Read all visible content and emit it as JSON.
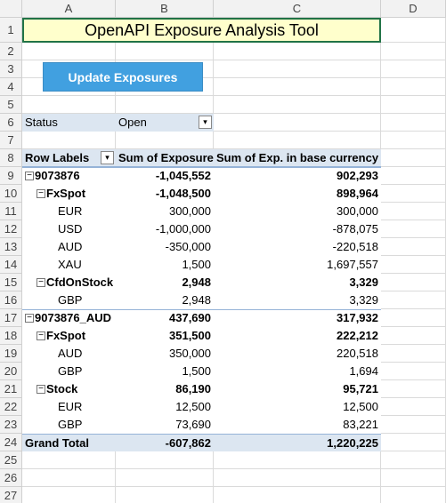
{
  "columns": [
    "A",
    "B",
    "C",
    "D"
  ],
  "row_numbers": [
    "1",
    "2",
    "3",
    "4",
    "5",
    "6",
    "7",
    "8",
    "9",
    "10",
    "11",
    "12",
    "13",
    "14",
    "15",
    "16",
    "17",
    "18",
    "19",
    "20",
    "21",
    "22",
    "23",
    "24",
    "25",
    "26",
    "27"
  ],
  "title": "OpenAPI Exposure Analysis Tool",
  "button": "Update Exposures",
  "filter": {
    "label": "Status",
    "value": "Open"
  },
  "pivot": {
    "headers": [
      "Row Labels",
      "Sum of Exposure",
      "Sum of Exp. in base currency"
    ],
    "rows": [
      {
        "label": "9073876",
        "level": 0,
        "exposure": "-1,045,552",
        "base": "902,293"
      },
      {
        "label": "FxSpot",
        "level": 1,
        "exposure": "-1,048,500",
        "base": "898,964"
      },
      {
        "label": "EUR",
        "level": 2,
        "exposure": "300,000",
        "base": "300,000"
      },
      {
        "label": "USD",
        "level": 2,
        "exposure": "-1,000,000",
        "base": "-878,075"
      },
      {
        "label": "AUD",
        "level": 2,
        "exposure": "-350,000",
        "base": "-220,518"
      },
      {
        "label": "XAU",
        "level": 2,
        "exposure": "1,500",
        "base": "1,697,557"
      },
      {
        "label": "CfdOnStock",
        "level": 1,
        "exposure": "2,948",
        "base": "3,329"
      },
      {
        "label": "GBP",
        "level": 2,
        "exposure": "2,948",
        "base": "3,329"
      },
      {
        "label": "9073876_AUD",
        "level": 0,
        "exposure": "437,690",
        "base": "317,932"
      },
      {
        "label": "FxSpot",
        "level": 1,
        "exposure": "351,500",
        "base": "222,212"
      },
      {
        "label": "AUD",
        "level": 2,
        "exposure": "350,000",
        "base": "220,518"
      },
      {
        "label": "GBP",
        "level": 2,
        "exposure": "1,500",
        "base": "1,694"
      },
      {
        "label": "Stock",
        "level": 1,
        "exposure": "86,190",
        "base": "95,721"
      },
      {
        "label": "EUR",
        "level": 2,
        "exposure": "12,500",
        "base": "12,500"
      },
      {
        "label": "GBP",
        "level": 2,
        "exposure": "73,690",
        "base": "83,221"
      }
    ],
    "grand_total": {
      "label": "Grand Total",
      "exposure": "-607,862",
      "base": "1,220,225"
    }
  }
}
